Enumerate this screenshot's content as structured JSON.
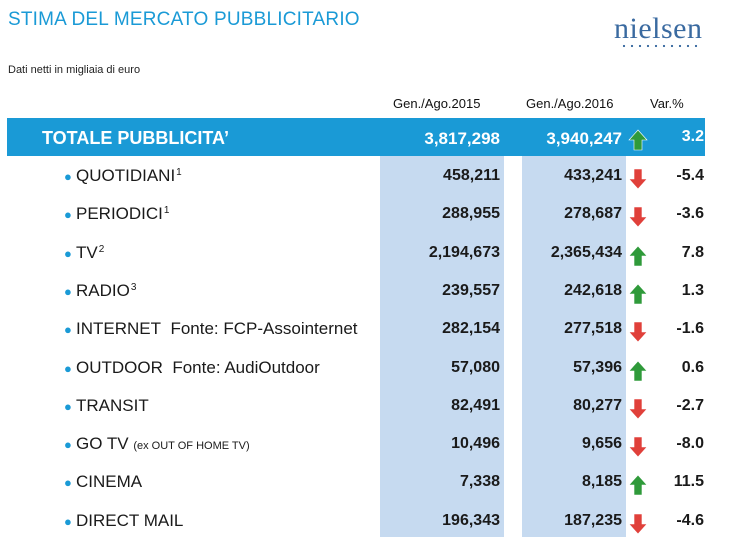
{
  "header": {
    "title": "STIMA DEL MERCATO PUBBLICITARIO",
    "logo_text": "nielsen",
    "subtitle": "Dati netti in migliaia di euro"
  },
  "columns": {
    "col1": "Gen./Ago.2015",
    "col2": "Gen./Ago.2016",
    "col3": "Var.%"
  },
  "colors": {
    "accent_blue": "#1a9ad6",
    "column_shade": "#c6daf0",
    "up_arrow": "#2f9a3a",
    "down_arrow": "#e0403a"
  },
  "total": {
    "label": "TOTALE PUBBLICITA’",
    "v2015": "3,817,298",
    "v2016": "3,940,247",
    "direction": "up",
    "var": "3.2"
  },
  "rows": [
    {
      "label": "QUOTIDIANI",
      "sup": "1",
      "note": "",
      "v2015": "458,211",
      "v2016": "433,241",
      "direction": "down",
      "var": "-5.4"
    },
    {
      "label": "PERIODICI",
      "sup": "1",
      "note": "",
      "v2015": "288,955",
      "v2016": "278,687",
      "direction": "down",
      "var": "-3.6"
    },
    {
      "label": "TV",
      "sup": "2",
      "note": "",
      "v2015": "2,194,673",
      "v2016": "2,365,434",
      "direction": "up",
      "var": "7.8"
    },
    {
      "label": "RADIO",
      "sup": "3",
      "note": "",
      "v2015": "239,557",
      "v2016": "242,618",
      "direction": "up",
      "var": "1.3"
    },
    {
      "label": "INTERNET",
      "sup": "",
      "note": "Fonte: FCP-Assointernet",
      "v2015": "282,154",
      "v2016": "277,518",
      "direction": "down",
      "var": "-1.6"
    },
    {
      "label": "OUTDOOR",
      "sup": "",
      "note": "Fonte: AudiOutdoor",
      "v2015": "57,080",
      "v2016": "57,396",
      "direction": "up",
      "var": "0.6"
    },
    {
      "label": "TRANSIT",
      "sup": "",
      "note": "",
      "v2015": "82,491",
      "v2016": "80,277",
      "direction": "down",
      "var": "-2.7"
    },
    {
      "label": "GO TV",
      "sup": "",
      "small": "(ex OUT OF HOME TV)",
      "note": "",
      "v2015": "10,496",
      "v2016": "9,656",
      "direction": "down",
      "var": "-8.0"
    },
    {
      "label": "CINEMA",
      "sup": "",
      "note": "",
      "v2015": "7,338",
      "v2016": "8,185",
      "direction": "up",
      "var": "11.5"
    },
    {
      "label": "DIRECT MAIL",
      "sup": "",
      "note": "",
      "v2015": "196,343",
      "v2016": "187,235",
      "direction": "down",
      "var": "-4.6"
    }
  ]
}
